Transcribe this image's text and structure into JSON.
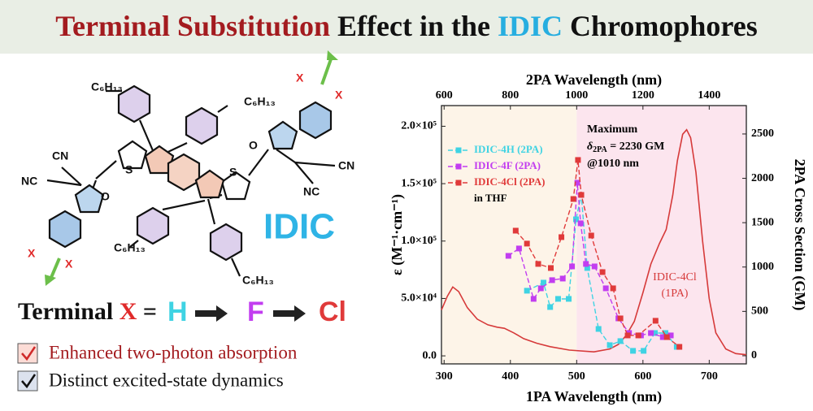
{
  "title": [
    {
      "text": "Terminal Substitution",
      "color": "#a31b1f"
    },
    {
      "text": "Effect in the",
      "color": "#111111"
    },
    {
      "text": "IDIC",
      "color": "#27aee0"
    },
    {
      "text": "Chromophores",
      "color": "#111111"
    }
  ],
  "molecule": {
    "labels": [
      "C₆H₁₃",
      "C₆H₁₃",
      "C₆H₁₃",
      "C₆H₁₃",
      "CN",
      "NC",
      "CN",
      "NC",
      "O",
      "O",
      "S",
      "S",
      "X",
      "X",
      "X",
      "X"
    ],
    "name": "IDIC"
  },
  "terminal": [
    {
      "text": "Terminal",
      "color": "#111111"
    },
    {
      "text": "X",
      "color": "#e02a2a"
    },
    {
      "text": "=",
      "color": "#111111"
    },
    {
      "text": "H",
      "color": "#3fd3e3"
    },
    {
      "text": "F",
      "color": "#c23df0"
    },
    {
      "text": "Cl",
      "color": "#e03a3a"
    }
  ],
  "highlights": [
    {
      "text": "Enhanced two-photon absorption",
      "color": "#a31b1f"
    },
    {
      "text": "Distinct excited-state dynamics",
      "color": "#111111"
    }
  ],
  "chart_data": {
    "type": "line",
    "x_label": "1PA Wavelength (nm)",
    "x2_label": "2PA Wavelength (nm)",
    "y_label": "ε (M⁻¹·cm⁻¹)",
    "y2_label": "2PA Cross Section (GM)",
    "xlim": [
      296,
      756
    ],
    "xticks": [
      300,
      400,
      500,
      600,
      700
    ],
    "x2lim": [
      592,
      1512
    ],
    "x2ticks": [
      600,
      800,
      1000,
      1200,
      1400
    ],
    "ylim": [
      -7000,
      218000
    ],
    "yticks": [
      {
        "value": 0,
        "label": "0.0"
      },
      {
        "value": 50000,
        "label": "5.0×10⁴"
      },
      {
        "value": 100000,
        "label": "1.0×10⁵"
      },
      {
        "value": 150000,
        "label": "1.5×10⁵"
      },
      {
        "value": 200000,
        "label": "2.0×10⁵"
      }
    ],
    "y2lim": [
      -92,
      2820
    ],
    "y2ticks": [
      0,
      500,
      1000,
      1500,
      2000,
      2500
    ],
    "regions": [
      {
        "xlim": [
          296,
          500
        ],
        "color": "#fdf4e8"
      },
      {
        "xlim": [
          500,
          756
        ],
        "color": "#fce5ee"
      }
    ],
    "legend_position": "upper left",
    "legend_note": "in THF",
    "annotation": {
      "line1": "Maximum",
      "symbol": "δ",
      "sub": "2PA",
      "rest": " = 2230 GM",
      "line3": "@1010 nm"
    },
    "curve_label": [
      "IDIC-4Cl",
      "(1PA)"
    ],
    "series": [
      {
        "name": "IDIC-4Cl (1PA)",
        "color": "#d63a3a",
        "axis": "y",
        "x_axis": "x",
        "marker": "none",
        "in_legend": false,
        "x": [
          296,
          305,
          313,
          322,
          335,
          350,
          366,
          380,
          391,
          405,
          420,
          440,
          460,
          489,
          526,
          550,
          563,
          575,
          587,
          600,
          612,
          625,
          635,
          645,
          652,
          660,
          666,
          672,
          680,
          690,
          700,
          710,
          725,
          740,
          756
        ],
        "values": [
          40000,
          52000,
          60000,
          56000,
          42000,
          32000,
          27000,
          25000,
          24000,
          20000,
          15000,
          11000,
          8000,
          5000,
          3500,
          6000,
          10000,
          18000,
          30000,
          55000,
          80000,
          98000,
          110000,
          140000,
          170000,
          193000,
          197000,
          190000,
          160000,
          100000,
          50000,
          20000,
          6000,
          2000,
          1000
        ]
      },
      {
        "name": "IDIC-4H (2PA)",
        "color": "#3fd3e3",
        "axis": "y2",
        "x_axis": "x2",
        "marker": "square",
        "in_legend": true,
        "x": [
          850,
          900,
          920,
          944,
          976,
          998,
          1014,
          1032,
          1066,
          1100,
          1132,
          1170,
          1202,
          1236,
          1268,
          1302
        ],
        "values": [
          733,
          824,
          549,
          641,
          641,
          1538,
          1813,
          989,
          302,
          119,
          165,
          55,
          55,
          256,
          256,
          100
        ]
      },
      {
        "name": "IDIC-4F (2PA)",
        "color": "#c23df0",
        "axis": "y2",
        "x_axis": "x2",
        "marker": "square",
        "in_legend": true,
        "x": [
          794,
          826,
          870,
          892,
          926,
          958,
          986,
          1002,
          1012,
          1028,
          1054,
          1088,
          1126,
          1158,
          1194,
          1224,
          1260,
          1284
        ],
        "values": [
          1126,
          1209,
          641,
          760,
          852,
          870,
          1007,
          1950,
          1493,
          1035,
          1007,
          760,
          421,
          256,
          229,
          256,
          210,
          229
        ]
      },
      {
        "name": "IDIC-4Cl (2PA)",
        "color": "#e03a3a",
        "axis": "y2",
        "x_axis": "x2",
        "marker": "square",
        "in_legend": true,
        "x": [
          816,
          850,
          884,
          922,
          954,
          990,
          1004,
          1014,
          1044,
          1078,
          1110,
          1132,
          1154,
          1186,
          1238,
          1272,
          1310
        ],
        "values": [
          1410,
          1264,
          1035,
          989,
          1337,
          1767,
          2207,
          1813,
          1355,
          943,
          760,
          421,
          229,
          229,
          394,
          210,
          100
        ]
      }
    ]
  }
}
